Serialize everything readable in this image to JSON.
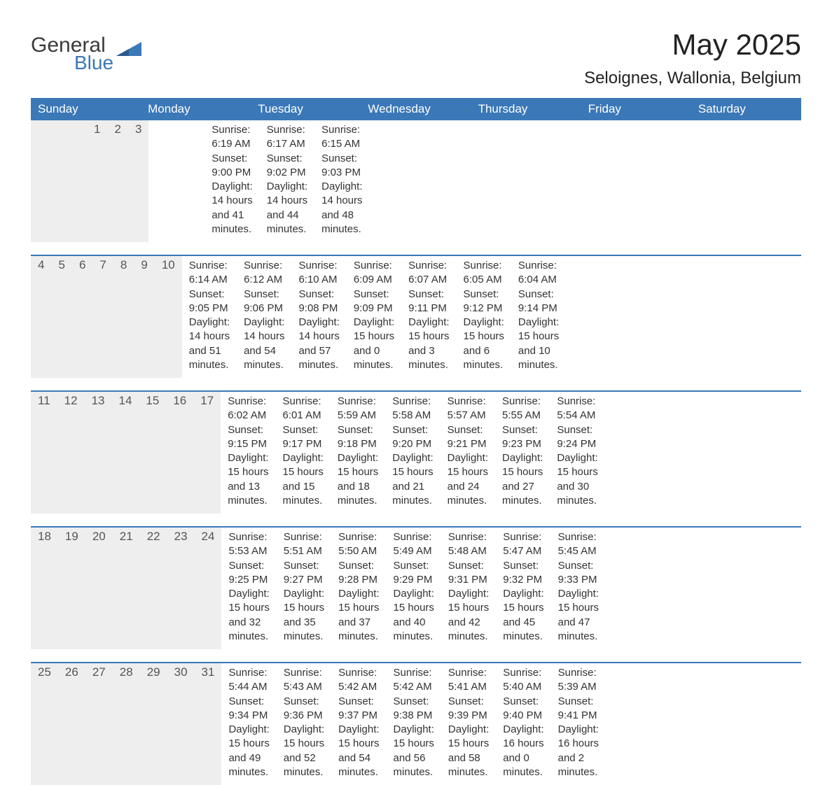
{
  "logo": {
    "text1": "General",
    "text2": "Blue",
    "icon_color": "#3b78b8",
    "text1_color": "#3b3b3b",
    "text2_color": "#3b78b8"
  },
  "title": "May 2025",
  "location": "Seloignes, Wallonia, Belgium",
  "colors": {
    "header_bg": "#3b78b8",
    "header_text": "#ffffff",
    "daynum_bg": "#eeeeee",
    "daynum_text": "#555555",
    "body_text": "#333333",
    "rule": "#3b78b8",
    "page_bg": "#ffffff"
  },
  "typography": {
    "title_fontsize": 42,
    "location_fontsize": 24,
    "weekday_fontsize": 17,
    "daynum_fontsize": 17,
    "body_fontsize": 15
  },
  "weekdays": [
    "Sunday",
    "Monday",
    "Tuesday",
    "Wednesday",
    "Thursday",
    "Friday",
    "Saturday"
  ],
  "weeks": [
    [
      {
        "day": "",
        "sunrise": "",
        "sunset": "",
        "daylight": ""
      },
      {
        "day": "",
        "sunrise": "",
        "sunset": "",
        "daylight": ""
      },
      {
        "day": "",
        "sunrise": "",
        "sunset": "",
        "daylight": ""
      },
      {
        "day": "",
        "sunrise": "",
        "sunset": "",
        "daylight": ""
      },
      {
        "day": "1",
        "sunrise": "Sunrise: 6:19 AM",
        "sunset": "Sunset: 9:00 PM",
        "daylight": "Daylight: 14 hours and 41 minutes."
      },
      {
        "day": "2",
        "sunrise": "Sunrise: 6:17 AM",
        "sunset": "Sunset: 9:02 PM",
        "daylight": "Daylight: 14 hours and 44 minutes."
      },
      {
        "day": "3",
        "sunrise": "Sunrise: 6:15 AM",
        "sunset": "Sunset: 9:03 PM",
        "daylight": "Daylight: 14 hours and 48 minutes."
      }
    ],
    [
      {
        "day": "4",
        "sunrise": "Sunrise: 6:14 AM",
        "sunset": "Sunset: 9:05 PM",
        "daylight": "Daylight: 14 hours and 51 minutes."
      },
      {
        "day": "5",
        "sunrise": "Sunrise: 6:12 AM",
        "sunset": "Sunset: 9:06 PM",
        "daylight": "Daylight: 14 hours and 54 minutes."
      },
      {
        "day": "6",
        "sunrise": "Sunrise: 6:10 AM",
        "sunset": "Sunset: 9:08 PM",
        "daylight": "Daylight: 14 hours and 57 minutes."
      },
      {
        "day": "7",
        "sunrise": "Sunrise: 6:09 AM",
        "sunset": "Sunset: 9:09 PM",
        "daylight": "Daylight: 15 hours and 0 minutes."
      },
      {
        "day": "8",
        "sunrise": "Sunrise: 6:07 AM",
        "sunset": "Sunset: 9:11 PM",
        "daylight": "Daylight: 15 hours and 3 minutes."
      },
      {
        "day": "9",
        "sunrise": "Sunrise: 6:05 AM",
        "sunset": "Sunset: 9:12 PM",
        "daylight": "Daylight: 15 hours and 6 minutes."
      },
      {
        "day": "10",
        "sunrise": "Sunrise: 6:04 AM",
        "sunset": "Sunset: 9:14 PM",
        "daylight": "Daylight: 15 hours and 10 minutes."
      }
    ],
    [
      {
        "day": "11",
        "sunrise": "Sunrise: 6:02 AM",
        "sunset": "Sunset: 9:15 PM",
        "daylight": "Daylight: 15 hours and 13 minutes."
      },
      {
        "day": "12",
        "sunrise": "Sunrise: 6:01 AM",
        "sunset": "Sunset: 9:17 PM",
        "daylight": "Daylight: 15 hours and 15 minutes."
      },
      {
        "day": "13",
        "sunrise": "Sunrise: 5:59 AM",
        "sunset": "Sunset: 9:18 PM",
        "daylight": "Daylight: 15 hours and 18 minutes."
      },
      {
        "day": "14",
        "sunrise": "Sunrise: 5:58 AM",
        "sunset": "Sunset: 9:20 PM",
        "daylight": "Daylight: 15 hours and 21 minutes."
      },
      {
        "day": "15",
        "sunrise": "Sunrise: 5:57 AM",
        "sunset": "Sunset: 9:21 PM",
        "daylight": "Daylight: 15 hours and 24 minutes."
      },
      {
        "day": "16",
        "sunrise": "Sunrise: 5:55 AM",
        "sunset": "Sunset: 9:23 PM",
        "daylight": "Daylight: 15 hours and 27 minutes."
      },
      {
        "day": "17",
        "sunrise": "Sunrise: 5:54 AM",
        "sunset": "Sunset: 9:24 PM",
        "daylight": "Daylight: 15 hours and 30 minutes."
      }
    ],
    [
      {
        "day": "18",
        "sunrise": "Sunrise: 5:53 AM",
        "sunset": "Sunset: 9:25 PM",
        "daylight": "Daylight: 15 hours and 32 minutes."
      },
      {
        "day": "19",
        "sunrise": "Sunrise: 5:51 AM",
        "sunset": "Sunset: 9:27 PM",
        "daylight": "Daylight: 15 hours and 35 minutes."
      },
      {
        "day": "20",
        "sunrise": "Sunrise: 5:50 AM",
        "sunset": "Sunset: 9:28 PM",
        "daylight": "Daylight: 15 hours and 37 minutes."
      },
      {
        "day": "21",
        "sunrise": "Sunrise: 5:49 AM",
        "sunset": "Sunset: 9:29 PM",
        "daylight": "Daylight: 15 hours and 40 minutes."
      },
      {
        "day": "22",
        "sunrise": "Sunrise: 5:48 AM",
        "sunset": "Sunset: 9:31 PM",
        "daylight": "Daylight: 15 hours and 42 minutes."
      },
      {
        "day": "23",
        "sunrise": "Sunrise: 5:47 AM",
        "sunset": "Sunset: 9:32 PM",
        "daylight": "Daylight: 15 hours and 45 minutes."
      },
      {
        "day": "24",
        "sunrise": "Sunrise: 5:45 AM",
        "sunset": "Sunset: 9:33 PM",
        "daylight": "Daylight: 15 hours and 47 minutes."
      }
    ],
    [
      {
        "day": "25",
        "sunrise": "Sunrise: 5:44 AM",
        "sunset": "Sunset: 9:34 PM",
        "daylight": "Daylight: 15 hours and 49 minutes."
      },
      {
        "day": "26",
        "sunrise": "Sunrise: 5:43 AM",
        "sunset": "Sunset: 9:36 PM",
        "daylight": "Daylight: 15 hours and 52 minutes."
      },
      {
        "day": "27",
        "sunrise": "Sunrise: 5:42 AM",
        "sunset": "Sunset: 9:37 PM",
        "daylight": "Daylight: 15 hours and 54 minutes."
      },
      {
        "day": "28",
        "sunrise": "Sunrise: 5:42 AM",
        "sunset": "Sunset: 9:38 PM",
        "daylight": "Daylight: 15 hours and 56 minutes."
      },
      {
        "day": "29",
        "sunrise": "Sunrise: 5:41 AM",
        "sunset": "Sunset: 9:39 PM",
        "daylight": "Daylight: 15 hours and 58 minutes."
      },
      {
        "day": "30",
        "sunrise": "Sunrise: 5:40 AM",
        "sunset": "Sunset: 9:40 PM",
        "daylight": "Daylight: 16 hours and 0 minutes."
      },
      {
        "day": "31",
        "sunrise": "Sunrise: 5:39 AM",
        "sunset": "Sunset: 9:41 PM",
        "daylight": "Daylight: 16 hours and 2 minutes."
      }
    ]
  ]
}
